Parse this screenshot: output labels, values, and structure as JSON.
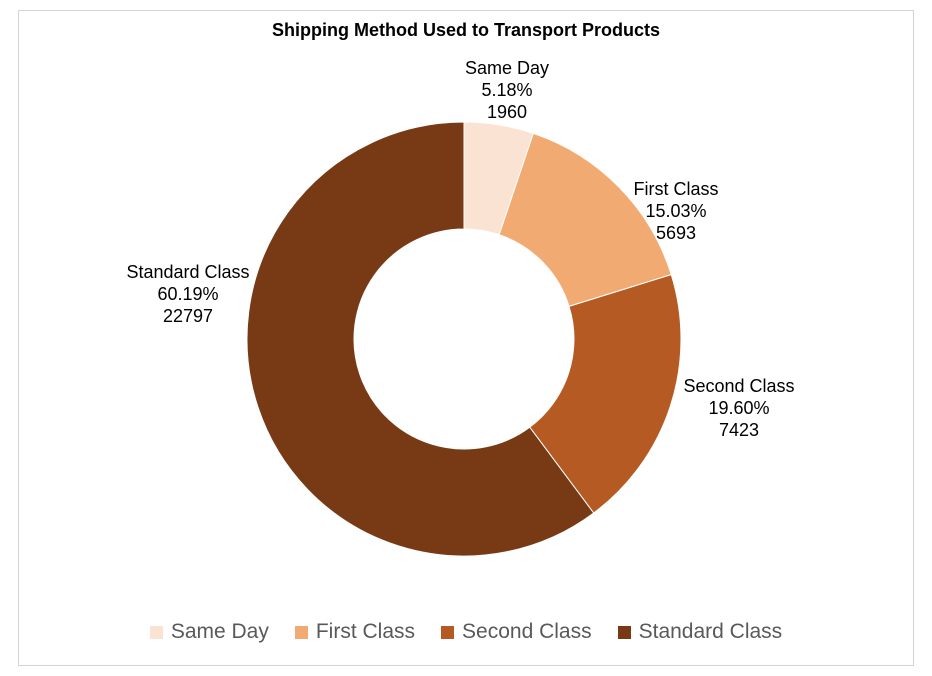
{
  "chart_data": {
    "type": "pie",
    "subtype": "donut",
    "title": "Shipping Method Used to Transport Products",
    "slices": [
      {
        "label": "Same Day",
        "percent": "5.18%",
        "value": 1960,
        "color": "#FAE3D2"
      },
      {
        "label": "First Class",
        "percent": "15.03%",
        "value": 5693,
        "color": "#F2AA73"
      },
      {
        "label": "Second Class",
        "percent": "19.60%",
        "value": 7423,
        "color": "#B45A22"
      },
      {
        "label": "Standard Class",
        "percent": "60.19%",
        "value": 22797,
        "color": "#783915"
      }
    ],
    "legend_position": "bottom"
  }
}
